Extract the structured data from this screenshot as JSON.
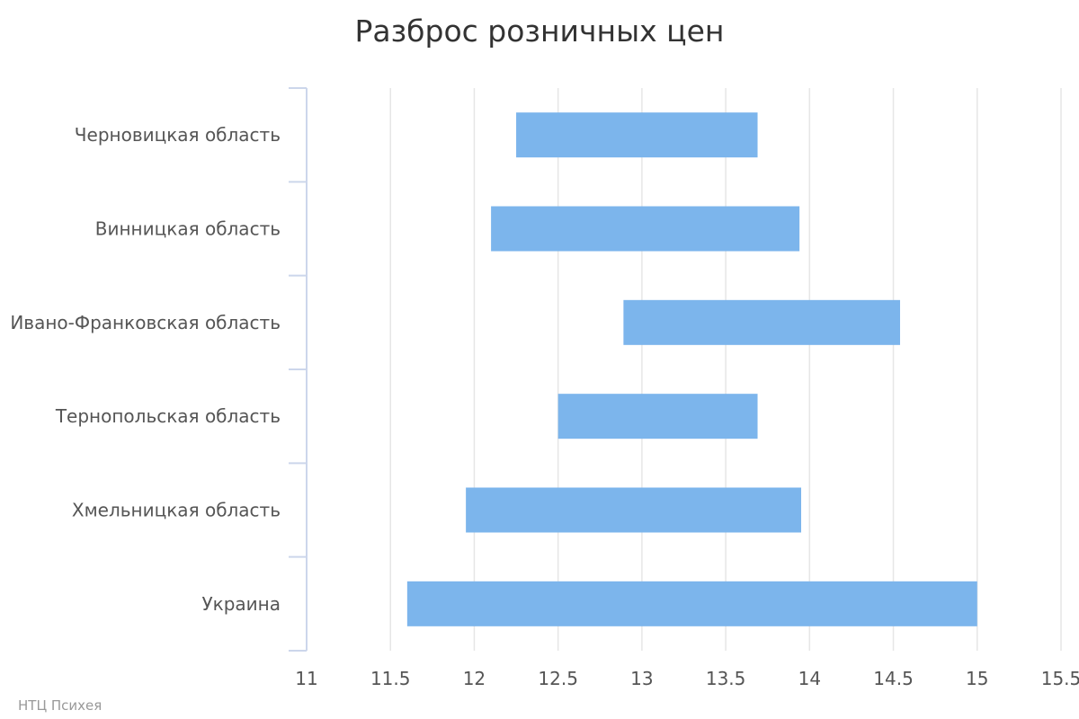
{
  "chart_data": {
    "type": "bar",
    "orientation": "horizontal",
    "subtype": "floating-range",
    "title": "Разброс розничных цен",
    "xlabel": "",
    "ylabel": "",
    "categories": [
      "Черновицкая область",
      "Винницкая область",
      "Ивано-Франковская область",
      "Тернопольская область",
      "Хмельницкая область",
      "Украина"
    ],
    "series": [
      {
        "values": [
          [
            12.25,
            13.69
          ],
          [
            12.1,
            13.94
          ],
          [
            12.89,
            14.54
          ],
          [
            12.5,
            13.69
          ],
          [
            11.95,
            13.95
          ],
          [
            11.6,
            15.0
          ]
        ]
      }
    ],
    "xlim": [
      11,
      15.5
    ],
    "xticks": [
      "11",
      "11.5",
      "12",
      "12.5",
      "13",
      "13.5",
      "14",
      "14.5",
      "15",
      "15.5"
    ],
    "grid": true,
    "legend": "none",
    "bar_color": "#7cb5ec",
    "grid_color": "#e6e6e6",
    "axis_color": "#ccd6eb"
  },
  "credits": "НТЦ Психея"
}
